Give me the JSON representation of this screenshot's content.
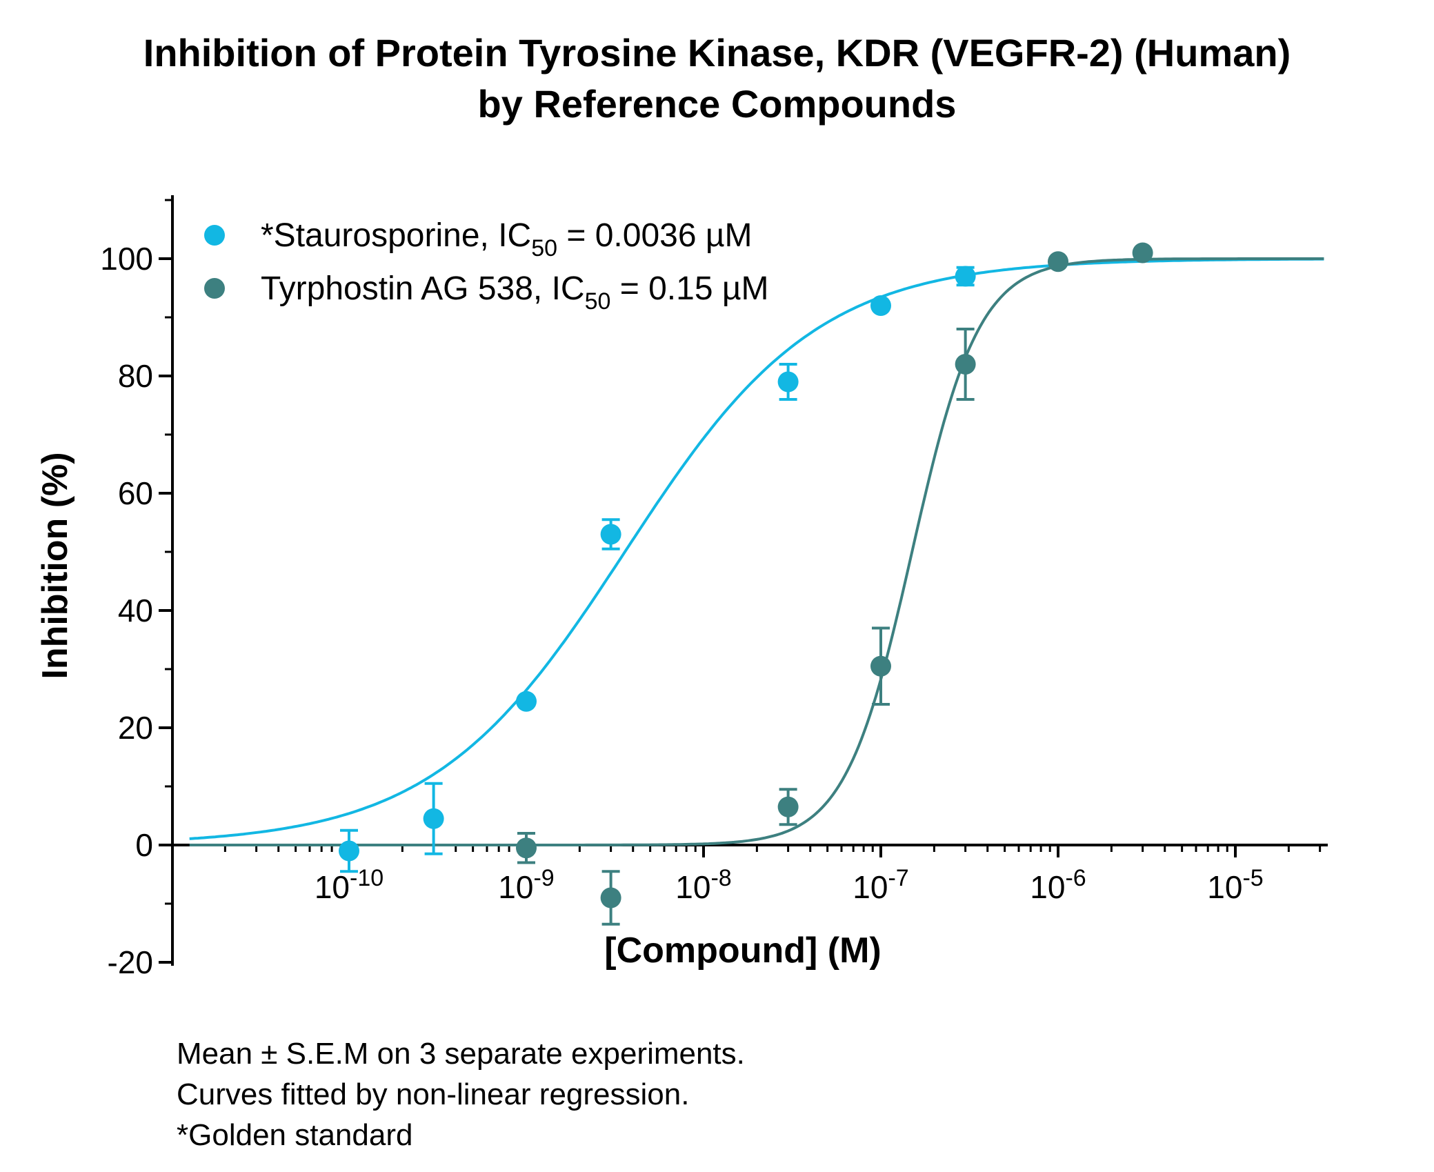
{
  "chart_data": {
    "type": "scatter",
    "title_line1": "Inhibition of Protein Tyrosine Kinase, KDR (VEGFR-2) (Human)",
    "title_line2": "by Reference Compounds",
    "xlabel": "[Compound] (M)",
    "ylabel": "Inhibition (%)",
    "xscale": "log",
    "xlim": [
      1e-11,
      3.16e-05
    ],
    "ylim": [
      -20,
      110
    ],
    "yticks": [
      -20,
      0,
      20,
      40,
      60,
      80,
      100
    ],
    "xticks": [
      {
        "value": 1e-10,
        "base": "10",
        "exp": "-10"
      },
      {
        "value": 1e-09,
        "base": "10",
        "exp": "-9"
      },
      {
        "value": 1e-08,
        "base": "10",
        "exp": "-8"
      },
      {
        "value": 1e-07,
        "base": "10",
        "exp": "-7"
      },
      {
        "value": 1e-06,
        "base": "10",
        "exp": "-6"
      },
      {
        "value": 1e-05,
        "base": "10",
        "exp": "-5"
      }
    ],
    "grid": false,
    "legend_position": "top-left",
    "series": [
      {
        "name": "*Staurosporine, IC",
        "name_sub": "50",
        "name_rest": " = 0.0036 µM",
        "color": "#12b7e3",
        "ic50_M": 3.6e-09,
        "hill": 0.8,
        "points": [
          {
            "x": 1e-10,
            "y": -1,
            "sem": 3.5
          },
          {
            "x": 3e-10,
            "y": 4.5,
            "sem": 6
          },
          {
            "x": 1e-09,
            "y": 24.5,
            "sem": 0
          },
          {
            "x": 3e-09,
            "y": 53,
            "sem": 2.5
          },
          {
            "x": 3e-08,
            "y": 79,
            "sem": 3
          },
          {
            "x": 1e-07,
            "y": 92,
            "sem": 0
          },
          {
            "x": 3e-07,
            "y": 97,
            "sem": 1.5
          }
        ]
      },
      {
        "name": "Tyrphostin AG 538, IC",
        "name_sub": "50",
        "name_rest": " = 0.15 µM",
        "color": "#3d8080",
        "ic50_M": 1.5e-07,
        "hill": 2.3,
        "points": [
          {
            "x": 1e-09,
            "y": -0.5,
            "sem": 2.5
          },
          {
            "x": 3e-09,
            "y": -9,
            "sem": 4.5
          },
          {
            "x": 3e-08,
            "y": 6.5,
            "sem": 3
          },
          {
            "x": 1e-07,
            "y": 30.5,
            "sem": 6.5
          },
          {
            "x": 3e-07,
            "y": 82,
            "sem": 6
          },
          {
            "x": 1e-06,
            "y": 99.5,
            "sem": 0
          },
          {
            "x": 3e-06,
            "y": 101,
            "sem": 0
          }
        ]
      }
    ]
  },
  "notes": [
    "Mean ± S.E.M on 3 separate experiments.",
    "Curves fitted by non-linear regression.",
    "*Golden standard"
  ]
}
